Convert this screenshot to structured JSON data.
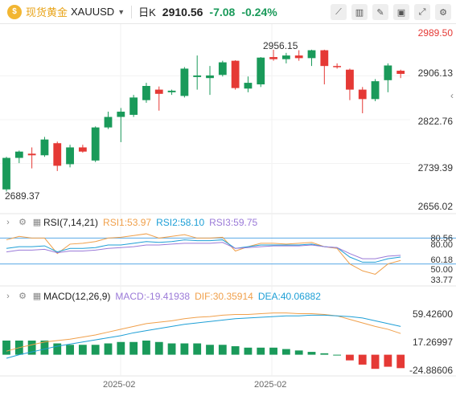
{
  "header": {
    "symbol_name": "现货黄金",
    "symbol_code": "XAUUSD",
    "period": "日K",
    "last_price": "2910.56",
    "change": "-7.08",
    "change_pct": "-0.24%",
    "coin_glyph": "$"
  },
  "price_axis": {
    "top_red": "2989.50",
    "ticks": [
      "2906.13",
      "2822.76",
      "2739.39",
      "2656.02"
    ],
    "high_annotation": "2956.15",
    "low_annotation": "2689.37"
  },
  "rsi": {
    "title": "RSI(7,14,21)",
    "rsi1": "RSI1:53.97",
    "rsi2": "RSI2:58.10",
    "rsi3": "RSI3:59.75",
    "axis": [
      "80.00",
      "60.18",
      "50.00",
      "33.77"
    ],
    "axis_extra": "80.56"
  },
  "macd": {
    "title": "MACD(12,26,9)",
    "macd_val": "MACD:-19.41938",
    "dif_val": "DIF:30.35914",
    "dea_val": "DEA:40.06882",
    "axis": [
      "59.42600",
      "17.26997",
      "-24.88606"
    ]
  },
  "x_axis": {
    "labels": [
      "2025-02",
      "2025-02"
    ]
  },
  "chart_data": {
    "type": "candlestick",
    "ylim": [
      2656.02,
      2989.5
    ],
    "candles": [
      {
        "o": 2690,
        "h": 2752,
        "l": 2686,
        "c": 2750
      },
      {
        "o": 2750,
        "h": 2764,
        "l": 2740,
        "c": 2762
      },
      {
        "o": 2758,
        "h": 2770,
        "l": 2730,
        "c": 2755
      },
      {
        "o": 2755,
        "h": 2790,
        "l": 2752,
        "c": 2785
      },
      {
        "o": 2778,
        "h": 2781,
        "l": 2725,
        "c": 2735
      },
      {
        "o": 2738,
        "h": 2775,
        "l": 2732,
        "c": 2770
      },
      {
        "o": 2770,
        "h": 2775,
        "l": 2760,
        "c": 2762
      },
      {
        "o": 2745,
        "h": 2810,
        "l": 2742,
        "c": 2808
      },
      {
        "o": 2808,
        "h": 2838,
        "l": 2805,
        "c": 2828
      },
      {
        "o": 2828,
        "h": 2845,
        "l": 2780,
        "c": 2838
      },
      {
        "o": 2832,
        "h": 2870,
        "l": 2828,
        "c": 2865
      },
      {
        "o": 2860,
        "h": 2893,
        "l": 2855,
        "c": 2887
      },
      {
        "o": 2880,
        "h": 2886,
        "l": 2840,
        "c": 2872
      },
      {
        "o": 2875,
        "h": 2880,
        "l": 2870,
        "c": 2878
      },
      {
        "o": 2868,
        "h": 2923,
        "l": 2865,
        "c": 2920
      },
      {
        "o": 2904,
        "h": 2945,
        "l": 2880,
        "c": 2907
      },
      {
        "o": 2902,
        "h": 2925,
        "l": 2870,
        "c": 2907
      },
      {
        "o": 2908,
        "h": 2935,
        "l": 2905,
        "c": 2932
      },
      {
        "o": 2935,
        "h": 2936,
        "l": 2880,
        "c": 2883
      },
      {
        "o": 2882,
        "h": 2905,
        "l": 2875,
        "c": 2893
      },
      {
        "o": 2890,
        "h": 2942,
        "l": 2885,
        "c": 2941
      },
      {
        "o": 2942,
        "h": 2956,
        "l": 2935,
        "c": 2938
      },
      {
        "o": 2938,
        "h": 2950,
        "l": 2930,
        "c": 2945
      },
      {
        "o": 2945,
        "h": 2955,
        "l": 2935,
        "c": 2940
      },
      {
        "o": 2940,
        "h": 2956,
        "l": 2925,
        "c": 2955
      },
      {
        "o": 2955,
        "h": 2956,
        "l": 2890,
        "c": 2925
      },
      {
        "o": 2925,
        "h": 2930,
        "l": 2920,
        "c": 2924
      },
      {
        "o": 2918,
        "h": 2920,
        "l": 2860,
        "c": 2880
      },
      {
        "o": 2880,
        "h": 2885,
        "l": 2835,
        "c": 2862
      },
      {
        "o": 2862,
        "h": 2900,
        "l": 2858,
        "c": 2896
      },
      {
        "o": 2898,
        "h": 2930,
        "l": 2875,
        "c": 2926
      },
      {
        "o": 2916,
        "h": 2918,
        "l": 2902,
        "c": 2910
      }
    ],
    "rsi_ylim": [
      30,
      86
    ],
    "rsi1": [
      78,
      82,
      80,
      80,
      62,
      73,
      74,
      76,
      80,
      81,
      83,
      85,
      80,
      82,
      84,
      80,
      80,
      81,
      65,
      70,
      74,
      74,
      73,
      74,
      75,
      70,
      68,
      50,
      42,
      38,
      50,
      54
    ],
    "rsi2": [
      68,
      70,
      70,
      71,
      64,
      68,
      68,
      69,
      72,
      72,
      74,
      76,
      75,
      76,
      78,
      77,
      77,
      78,
      68,
      70,
      72,
      72,
      72,
      72,
      73,
      70,
      69,
      58,
      52,
      52,
      56,
      58
    ],
    "rsi3": [
      64,
      66,
      66,
      67,
      63,
      65,
      65,
      66,
      68,
      69,
      70,
      72,
      72,
      73,
      74,
      74,
      74,
      75,
      68,
      69,
      70,
      71,
      71,
      71,
      72,
      70,
      69,
      62,
      56,
      56,
      59,
      60
    ],
    "macd_ylim": [
      -30,
      70
    ],
    "dif": [
      5,
      10,
      14,
      18,
      20,
      22,
      25,
      28,
      32,
      36,
      40,
      44,
      46,
      48,
      51,
      53,
      54,
      56,
      57,
      57,
      58,
      59,
      59,
      58,
      58,
      57,
      55,
      50,
      45,
      40,
      36,
      30
    ],
    "dea": [
      -5,
      0,
      4,
      8,
      12,
      15,
      18,
      21,
      24,
      27,
      31,
      34,
      37,
      40,
      43,
      45,
      47,
      49,
      51,
      52,
      53,
      54,
      55,
      55,
      56,
      56,
      55,
      54,
      52,
      48,
      44,
      40
    ],
    "hist": [
      20,
      20,
      20,
      20,
      16,
      14,
      14,
      14,
      16,
      18,
      18,
      20,
      18,
      16,
      16,
      16,
      14,
      14,
      12,
      10,
      10,
      10,
      8,
      6,
      4,
      2,
      0,
      -8,
      -14,
      -20,
      -17,
      -19
    ]
  }
}
